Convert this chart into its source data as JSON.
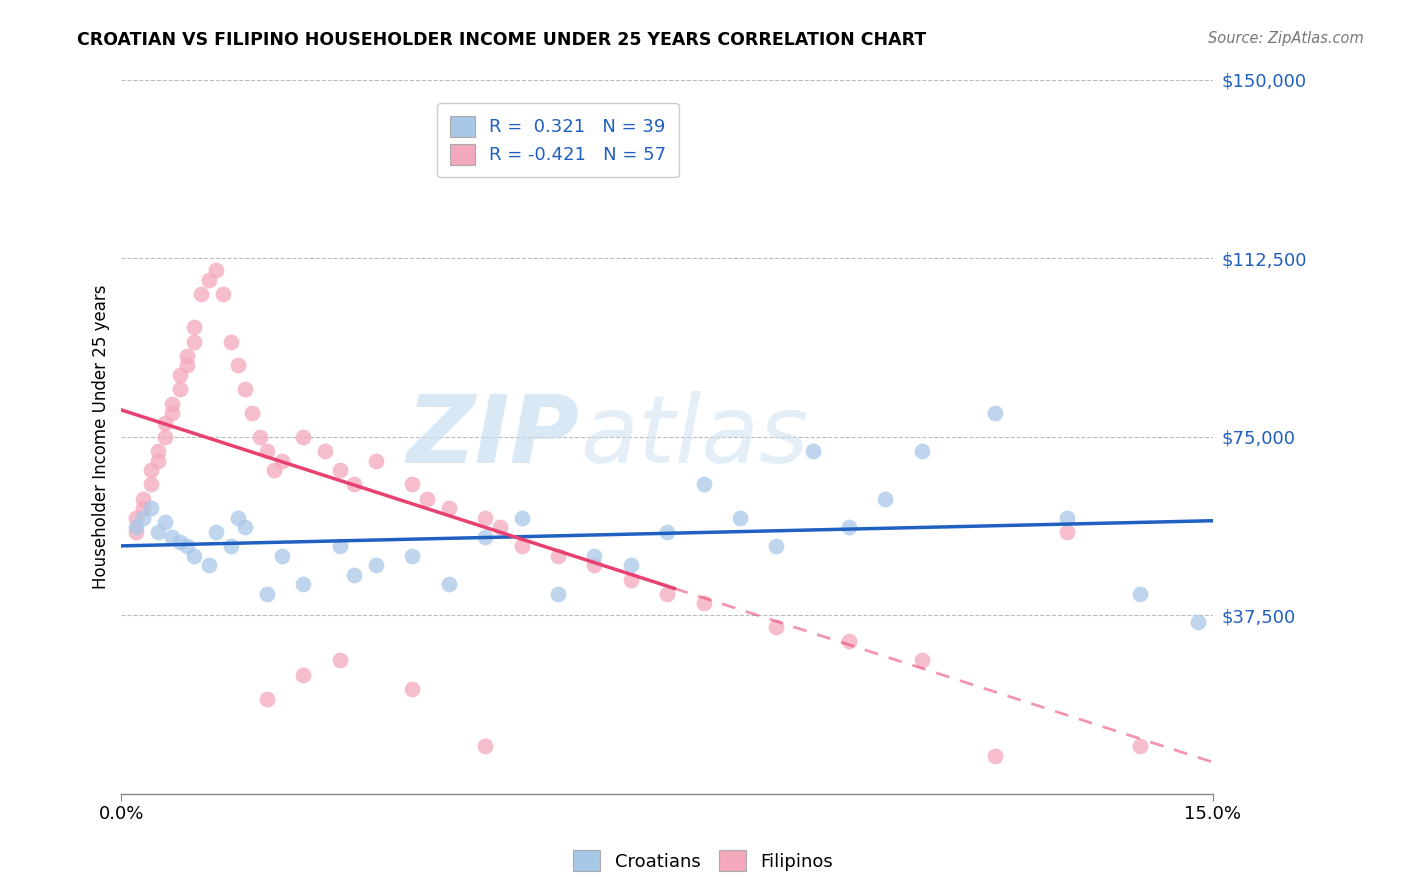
{
  "title": "CROATIAN VS FILIPINO HOUSEHOLDER INCOME UNDER 25 YEARS CORRELATION CHART",
  "source": "Source: ZipAtlas.com",
  "ylabel": "Householder Income Under 25 years",
  "xlim": [
    0.0,
    0.15
  ],
  "ylim": [
    0,
    150000
  ],
  "ytick_positions": [
    0,
    37500,
    75000,
    112500,
    150000
  ],
  "ytick_labels": [
    "",
    "$37,500",
    "$75,000",
    "$112,500",
    "$150,000"
  ],
  "croatian_color": "#a8c8e8",
  "filipino_color": "#f4a8bc",
  "croatian_line_color": "#2060c0",
  "filipino_line_color": "#e84070",
  "R_croatian": 0.321,
  "N_croatian": 39,
  "R_filipino": -0.421,
  "N_filipino": 57,
  "legend_labels": [
    "Croatians",
    "Filipinos"
  ],
  "watermark_zip": "ZIP",
  "watermark_atlas": "atlas",
  "grid_color": "#bbbbbb",
  "background_color": "#ffffff",
  "croatian_x": [
    0.002,
    0.003,
    0.004,
    0.005,
    0.006,
    0.007,
    0.008,
    0.009,
    0.01,
    0.012,
    0.013,
    0.015,
    0.016,
    0.017,
    0.02,
    0.022,
    0.025,
    0.03,
    0.032,
    0.035,
    0.04,
    0.045,
    0.05,
    0.055,
    0.06,
    0.065,
    0.07,
    0.075,
    0.08,
    0.085,
    0.09,
    0.095,
    0.1,
    0.105,
    0.11,
    0.12,
    0.13,
    0.14,
    0.148
  ],
  "croatian_y": [
    56000,
    58000,
    60000,
    55000,
    57000,
    54000,
    53000,
    52000,
    50000,
    48000,
    55000,
    52000,
    58000,
    56000,
    42000,
    50000,
    44000,
    52000,
    46000,
    48000,
    50000,
    44000,
    54000,
    58000,
    42000,
    50000,
    48000,
    55000,
    65000,
    58000,
    52000,
    72000,
    56000,
    62000,
    72000,
    80000,
    58000,
    42000,
    36000
  ],
  "filipino_x": [
    0.002,
    0.002,
    0.003,
    0.003,
    0.004,
    0.004,
    0.005,
    0.005,
    0.006,
    0.006,
    0.007,
    0.007,
    0.008,
    0.008,
    0.009,
    0.009,
    0.01,
    0.01,
    0.011,
    0.012,
    0.013,
    0.014,
    0.015,
    0.016,
    0.017,
    0.018,
    0.019,
    0.02,
    0.021,
    0.022,
    0.025,
    0.028,
    0.03,
    0.032,
    0.035,
    0.04,
    0.042,
    0.045,
    0.05,
    0.052,
    0.055,
    0.06,
    0.065,
    0.07,
    0.075,
    0.08,
    0.09,
    0.1,
    0.11,
    0.12,
    0.13,
    0.14,
    0.02,
    0.025,
    0.03,
    0.04,
    0.05
  ],
  "filipino_y": [
    58000,
    55000,
    62000,
    60000,
    65000,
    68000,
    70000,
    72000,
    75000,
    78000,
    80000,
    82000,
    85000,
    88000,
    90000,
    92000,
    95000,
    98000,
    105000,
    108000,
    110000,
    105000,
    95000,
    90000,
    85000,
    80000,
    75000,
    72000,
    68000,
    70000,
    75000,
    72000,
    68000,
    65000,
    70000,
    65000,
    62000,
    60000,
    58000,
    56000,
    52000,
    50000,
    48000,
    45000,
    42000,
    40000,
    35000,
    32000,
    28000,
    8000,
    55000,
    10000,
    20000,
    25000,
    28000,
    22000,
    10000
  ]
}
